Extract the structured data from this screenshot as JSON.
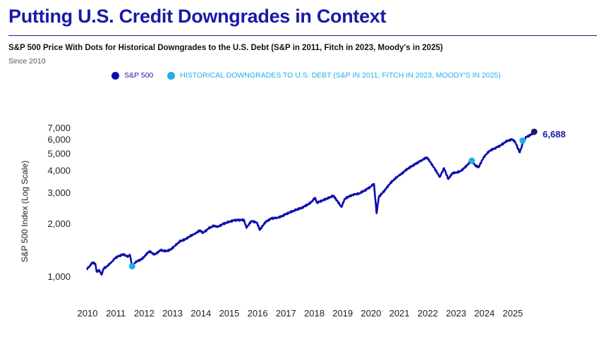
{
  "header": {
    "title": "Putting U.S. Credit Downgrades in Context",
    "subtitle": "S&P 500 Price With Dots for Historical Downgrades to the U.S. Debt (S&P in 2011, Fitch in 2023, Moody's in 2025)",
    "since": "Since 2010"
  },
  "colors": {
    "brand": "#1a1aa6",
    "series": "#0d0dad",
    "downgrade": "#1ab0e8"
  },
  "chart_data": {
    "type": "line",
    "title": "Putting U.S. Credit Downgrades in Context",
    "ylabel": "S&P 500 Index (Log Scale)",
    "xlabel": "",
    "yscale": "log",
    "ylim": [
      800,
      8000
    ],
    "xlim": [
      2010.0,
      2026.0
    ],
    "y_ticks": [
      1000,
      2000,
      3000,
      4000,
      5000,
      6000,
      7000
    ],
    "y_tick_labels": [
      "1,000",
      "2,000",
      "3,000",
      "4,000",
      "5,000",
      "6,000",
      "7,000"
    ],
    "x_ticks": [
      2010,
      2011,
      2012,
      2013,
      2014,
      2015,
      2016,
      2017,
      2018,
      2019,
      2020,
      2021,
      2022,
      2023,
      2024,
      2025
    ],
    "x_tick_labels": [
      "2010",
      "2011",
      "2012",
      "2013",
      "2014",
      "2015",
      "2016",
      "2017",
      "2018",
      "2019",
      "2020",
      "2021",
      "2022",
      "2023",
      "2024",
      "2025"
    ],
    "legend": [
      "S&P 500",
      "HISTORICAL DOWNGRADES TO U.S. DEBT (S&P IN 2011, FITCH IN 2023, MOODY'S IN 2025)"
    ],
    "series": [
      {
        "name": "S&P 500",
        "x": [
          2010.0,
          2010.1,
          2010.18,
          2010.3,
          2010.35,
          2010.45,
          2010.52,
          2010.6,
          2010.68,
          2010.8,
          2010.9,
          2011.0,
          2011.15,
          2011.3,
          2011.45,
          2011.52,
          2011.6,
          2011.7,
          2011.8,
          2011.9,
          2012.0,
          2012.2,
          2012.4,
          2012.6,
          2012.8,
          2012.95,
          2013.1,
          2013.3,
          2013.45,
          2013.6,
          2013.8,
          2014.0,
          2014.1,
          2014.3,
          2014.5,
          2014.6,
          2014.8,
          2015.0,
          2015.2,
          2015.4,
          2015.55,
          2015.63,
          2015.8,
          2016.0,
          2016.1,
          2016.3,
          2016.5,
          2016.7,
          2016.85,
          2017.0,
          2017.3,
          2017.6,
          2017.9,
          2018.05,
          2018.12,
          2018.3,
          2018.5,
          2018.7,
          2018.98,
          2019.1,
          2019.3,
          2019.45,
          2019.6,
          2019.8,
          2020.0,
          2020.13,
          2020.22,
          2020.3,
          2020.5,
          2020.7,
          2020.85,
          2021.0,
          2021.3,
          2021.6,
          2021.8,
          2022.0,
          2022.2,
          2022.45,
          2022.6,
          2022.75,
          2022.9,
          2023.0,
          2023.2,
          2023.4,
          2023.58,
          2023.7,
          2023.82,
          2024.0,
          2024.2,
          2024.4,
          2024.6,
          2024.8,
          2025.0,
          2025.1,
          2025.27,
          2025.4,
          2025.5,
          2025.6,
          2025.7,
          2025.78
        ],
        "values": [
          1115,
          1145,
          1205,
          1190,
          1070,
          1090,
          1030,
          1120,
          1140,
          1180,
          1230,
          1280,
          1320,
          1345,
          1300,
          1340,
          1150,
          1200,
          1240,
          1250,
          1290,
          1400,
          1340,
          1420,
          1400,
          1430,
          1500,
          1600,
          1630,
          1690,
          1760,
          1840,
          1780,
          1890,
          1960,
          1920,
          2000,
          2050,
          2100,
          2110,
          2100,
          1900,
          2080,
          2040,
          1850,
          2050,
          2150,
          2170,
          2200,
          2270,
          2380,
          2480,
          2640,
          2820,
          2640,
          2720,
          2800,
          2900,
          2500,
          2780,
          2900,
          2940,
          2980,
          3100,
          3250,
          3380,
          2300,
          2850,
          3100,
          3400,
          3600,
          3750,
          4100,
          4400,
          4600,
          4780,
          4300,
          3700,
          4150,
          3600,
          3900,
          3900,
          4000,
          4300,
          4580,
          4300,
          4200,
          4800,
          5200,
          5400,
          5600,
          5900,
          6050,
          5900,
          5100,
          5900,
          6250,
          6350,
          6500,
          6688
        ]
      },
      {
        "name": "HISTORICAL DOWNGRADES TO U.S. DEBT (S&P IN 2011, FITCH IN 2023, MOODY'S IN 2025)",
        "points": [
          {
            "x": 2011.6,
            "y": 1150,
            "label": "S&P in 2011"
          },
          {
            "x": 2023.58,
            "y": 4580,
            "label": "Fitch in 2023"
          },
          {
            "x": 2025.37,
            "y": 5960,
            "label": "Moody's in 2025"
          }
        ]
      }
    ],
    "end_value": 6688,
    "end_label": "6,688"
  }
}
